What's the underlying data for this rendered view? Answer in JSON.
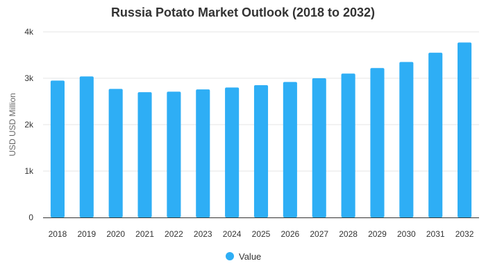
{
  "chart_data": {
    "type": "bar",
    "title": "Russia Potato Market Outlook (2018 to 2032)",
    "xlabel": "",
    "ylabel": "USD USD Million",
    "categories": [
      "2018",
      "2019",
      "2020",
      "2021",
      "2022",
      "2023",
      "2024",
      "2025",
      "2026",
      "2027",
      "2028",
      "2029",
      "2030",
      "2031",
      "2032"
    ],
    "series": [
      {
        "name": "Value",
        "values": [
          2950,
          3040,
          2770,
          2700,
          2710,
          2760,
          2800,
          2850,
          2920,
          3000,
          3100,
          3220,
          3350,
          3550,
          3770
        ]
      }
    ],
    "ylim": [
      0,
      4000
    ],
    "yticks": [
      0,
      1000,
      2000,
      3000,
      4000
    ],
    "ytick_labels": [
      "0",
      "1k",
      "2k",
      "3k",
      "4k"
    ],
    "grid": true,
    "legend_position": "bottom",
    "colors": {
      "bar": "#2eaef5",
      "grid": "#e6e6e6",
      "axis": "#333333"
    }
  }
}
